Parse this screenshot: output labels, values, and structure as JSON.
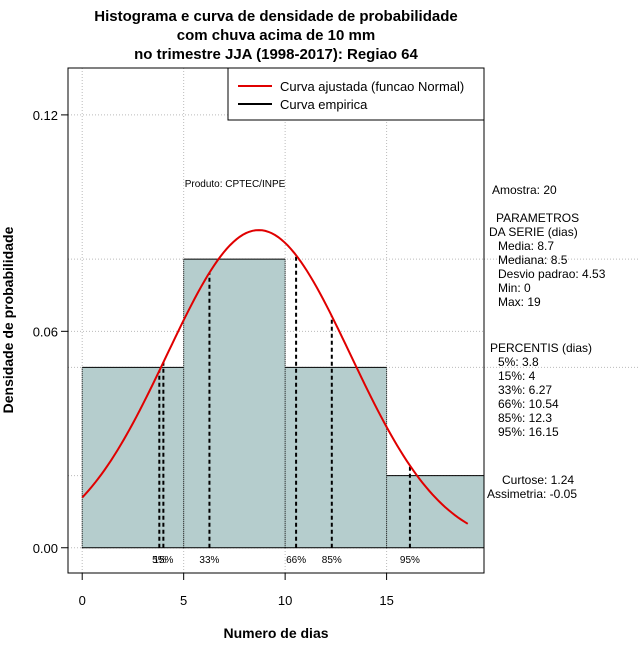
{
  "chart_data": {
    "type": "histogram",
    "title_lines": [
      "Histograma e curva de densidade de probabilidade",
      "com chuva acima de 10 mm",
      "no trimestre JJA (1998-2017): Regiao 64"
    ],
    "xlabel": "Numero de dias",
    "ylabel": "Densidade de probabilidade",
    "xlim": [
      -0.7,
      19.8
    ],
    "ylim": [
      -0.007,
      0.133
    ],
    "x_ticks": [
      "0",
      "5",
      "10",
      "15"
    ],
    "y_ticks": [
      "0.00",
      "0.06",
      "0.12"
    ],
    "bins": [
      {
        "x0": 0,
        "x1": 5,
        "density": 0.05
      },
      {
        "x0": 5,
        "x1": 10,
        "density": 0.08
      },
      {
        "x0": 10,
        "x1": 15,
        "density": 0.05
      },
      {
        "x0": 15,
        "x1": 20,
        "density": 0.02
      }
    ],
    "normal_fit": {
      "mean": 8.7,
      "sd": 4.53,
      "x_from": 0,
      "x_to": 19
    },
    "percentiles": [
      {
        "label": "5%",
        "value": 3.8
      },
      {
        "label": "15%",
        "value": 4
      },
      {
        "label": "33%",
        "value": 6.27
      },
      {
        "label": "66%",
        "value": 10.54
      },
      {
        "label": "85%",
        "value": 12.3
      },
      {
        "label": "95%",
        "value": 16.15
      }
    ],
    "percentile_tick_labels": [
      "5%",
      "15%",
      "33%",
      "66%",
      "85%",
      "95%"
    ],
    "legend": {
      "position": "top-right",
      "items": [
        {
          "label": "Curva ajustada (funcao Normal)",
          "color": "#ff0000"
        },
        {
          "label": "Curva empirica",
          "color": "#000000"
        }
      ]
    },
    "annotation": "Produto: CPTEC/INPE",
    "grid": true,
    "colors": {
      "bar_fill": "#b5cdcd",
      "fit_line": "#e00000",
      "grid": "#bbbbbb"
    }
  },
  "side_panel": {
    "amostra": "Amostra: 20",
    "parametros": [
      "PARAMETROS",
      "DA SERIE (dias)",
      "Media: 8.7",
      "Mediana: 8.5",
      "Desvio padrao: 4.53",
      "Min: 0",
      "Max: 19"
    ],
    "percentis": [
      "PERCENTIS (dias)",
      "5%: 3.8",
      "15%: 4",
      "33%: 6.27",
      "66%: 10.54",
      "85%: 12.3",
      "95%: 16.15"
    ],
    "curtose": "Curtose: 1.24",
    "assimetria": "Assimetria: -0.05"
  }
}
